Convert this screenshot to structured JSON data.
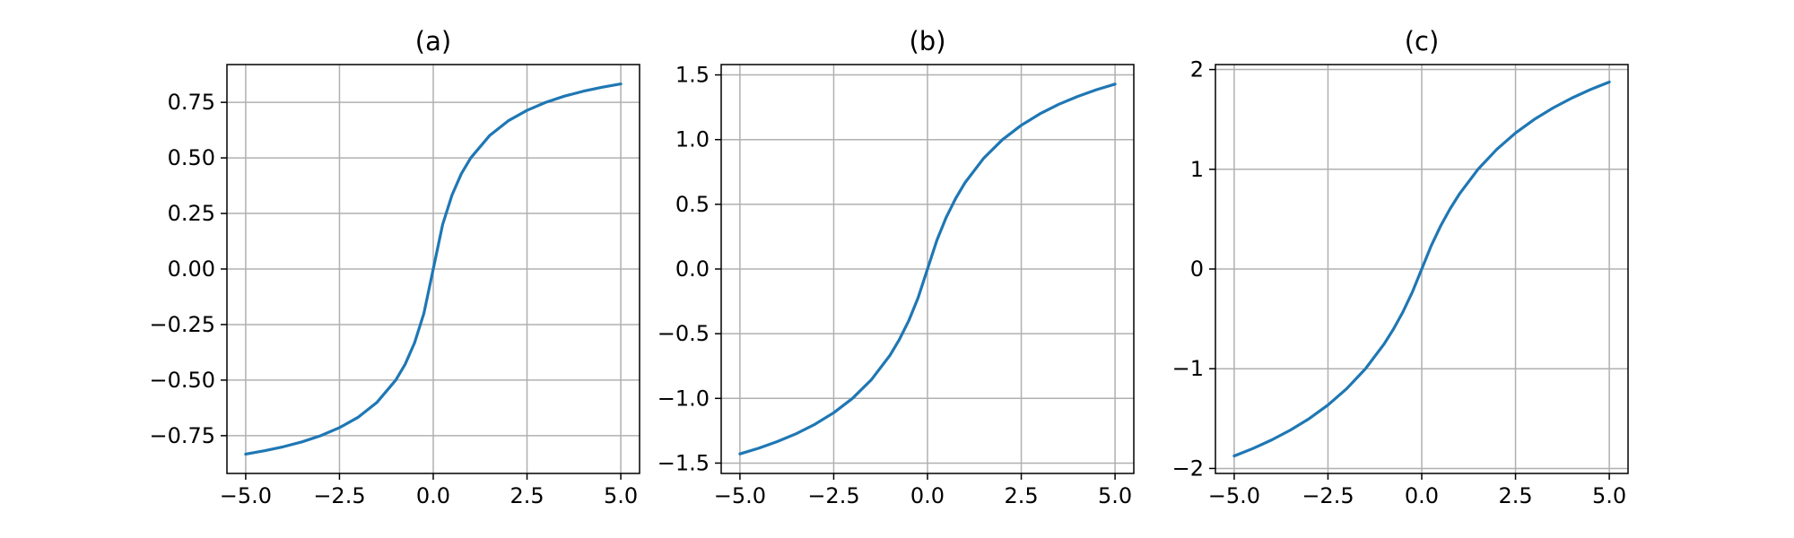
{
  "colors": {
    "line": "#1f77b4",
    "grid": "#b0b0b0"
  },
  "chart_data": [
    {
      "type": "line",
      "title": "(a)",
      "xlabel": "",
      "ylabel": "",
      "xlim": [
        -5.5,
        5.5
      ],
      "ylim": [
        -0.92,
        0.92
      ],
      "xticks": [
        -5.0,
        -2.5,
        0.0,
        2.5,
        5.0
      ],
      "xtick_labels": [
        "−5.0",
        "−2.5",
        "0.0",
        "2.5",
        "5.0"
      ],
      "yticks": [
        -0.75,
        -0.5,
        -0.25,
        0.0,
        0.25,
        0.5,
        0.75
      ],
      "ytick_labels": [
        "−0.75",
        "−0.50",
        "−0.25",
        "0.00",
        "0.25",
        "0.50",
        "0.75"
      ],
      "grid": true,
      "series": [
        {
          "x": [
            -5.0,
            -4.5,
            -4.0,
            -3.5,
            -3.0,
            -2.5,
            -2.0,
            -1.5,
            -1.0,
            -0.75,
            -0.5,
            -0.25,
            0.0,
            0.25,
            0.5,
            0.75,
            1.0,
            1.5,
            2.0,
            2.5,
            3.0,
            3.5,
            4.0,
            4.5,
            5.0
          ],
          "y": [
            -0.833,
            -0.818,
            -0.8,
            -0.778,
            -0.75,
            -0.714,
            -0.667,
            -0.6,
            -0.5,
            -0.429,
            -0.333,
            -0.2,
            0.0,
            0.2,
            0.333,
            0.429,
            0.5,
            0.6,
            0.667,
            0.714,
            0.75,
            0.778,
            0.8,
            0.818,
            0.833
          ]
        }
      ]
    },
    {
      "type": "line",
      "title": "(b)",
      "xlabel": "",
      "ylabel": "",
      "xlim": [
        -5.5,
        5.5
      ],
      "ylim": [
        -1.58,
        1.58
      ],
      "xticks": [
        -5.0,
        -2.5,
        0.0,
        2.5,
        5.0
      ],
      "xtick_labels": [
        "−5.0",
        "−2.5",
        "0.0",
        "2.5",
        "5.0"
      ],
      "yticks": [
        -1.5,
        -1.0,
        -0.5,
        0.0,
        0.5,
        1.0,
        1.5
      ],
      "ytick_labels": [
        "−1.5",
        "−1.0",
        "−0.5",
        "0.0",
        "0.5",
        "1.0",
        "1.5"
      ],
      "grid": true,
      "series": [
        {
          "x": [
            -5.0,
            -4.5,
            -4.0,
            -3.5,
            -3.0,
            -2.5,
            -2.0,
            -1.5,
            -1.0,
            -0.75,
            -0.5,
            -0.25,
            0.0,
            0.25,
            0.5,
            0.75,
            1.0,
            1.5,
            2.0,
            2.5,
            3.0,
            3.5,
            4.0,
            4.5,
            5.0
          ],
          "y": [
            -1.429,
            -1.385,
            -1.333,
            -1.273,
            -1.2,
            -1.111,
            -1.0,
            -0.857,
            -0.667,
            -0.545,
            -0.4,
            -0.222,
            0.0,
            0.222,
            0.4,
            0.545,
            0.667,
            0.857,
            1.0,
            1.111,
            1.2,
            1.273,
            1.333,
            1.385,
            1.429
          ]
        }
      ]
    },
    {
      "type": "line",
      "title": "(c)",
      "xlabel": "",
      "ylabel": "",
      "xlim": [
        -5.5,
        5.5
      ],
      "ylim": [
        -2.05,
        2.05
      ],
      "xticks": [
        -5.0,
        -2.5,
        0.0,
        2.5,
        5.0
      ],
      "xtick_labels": [
        "−5.0",
        "−2.5",
        "0.0",
        "2.5",
        "5.0"
      ],
      "yticks": [
        -2,
        -1,
        0,
        1,
        2
      ],
      "ytick_labels": [
        "−2",
        "−1",
        "0",
        "1",
        "2"
      ],
      "grid": true,
      "series": [
        {
          "x": [
            -5.0,
            -4.5,
            -4.0,
            -3.5,
            -3.0,
            -2.5,
            -2.0,
            -1.5,
            -1.0,
            -0.75,
            -0.5,
            -0.25,
            0.0,
            0.25,
            0.5,
            0.75,
            1.0,
            1.5,
            2.0,
            2.5,
            3.0,
            3.5,
            4.0,
            4.5,
            5.0
          ],
          "y": [
            -1.875,
            -1.8,
            -1.714,
            -1.615,
            -1.5,
            -1.364,
            -1.2,
            -1.0,
            -0.75,
            -0.6,
            -0.429,
            -0.231,
            0.0,
            0.231,
            0.429,
            0.6,
            0.75,
            1.0,
            1.2,
            1.364,
            1.5,
            1.615,
            1.714,
            1.8,
            1.875
          ]
        }
      ]
    }
  ]
}
